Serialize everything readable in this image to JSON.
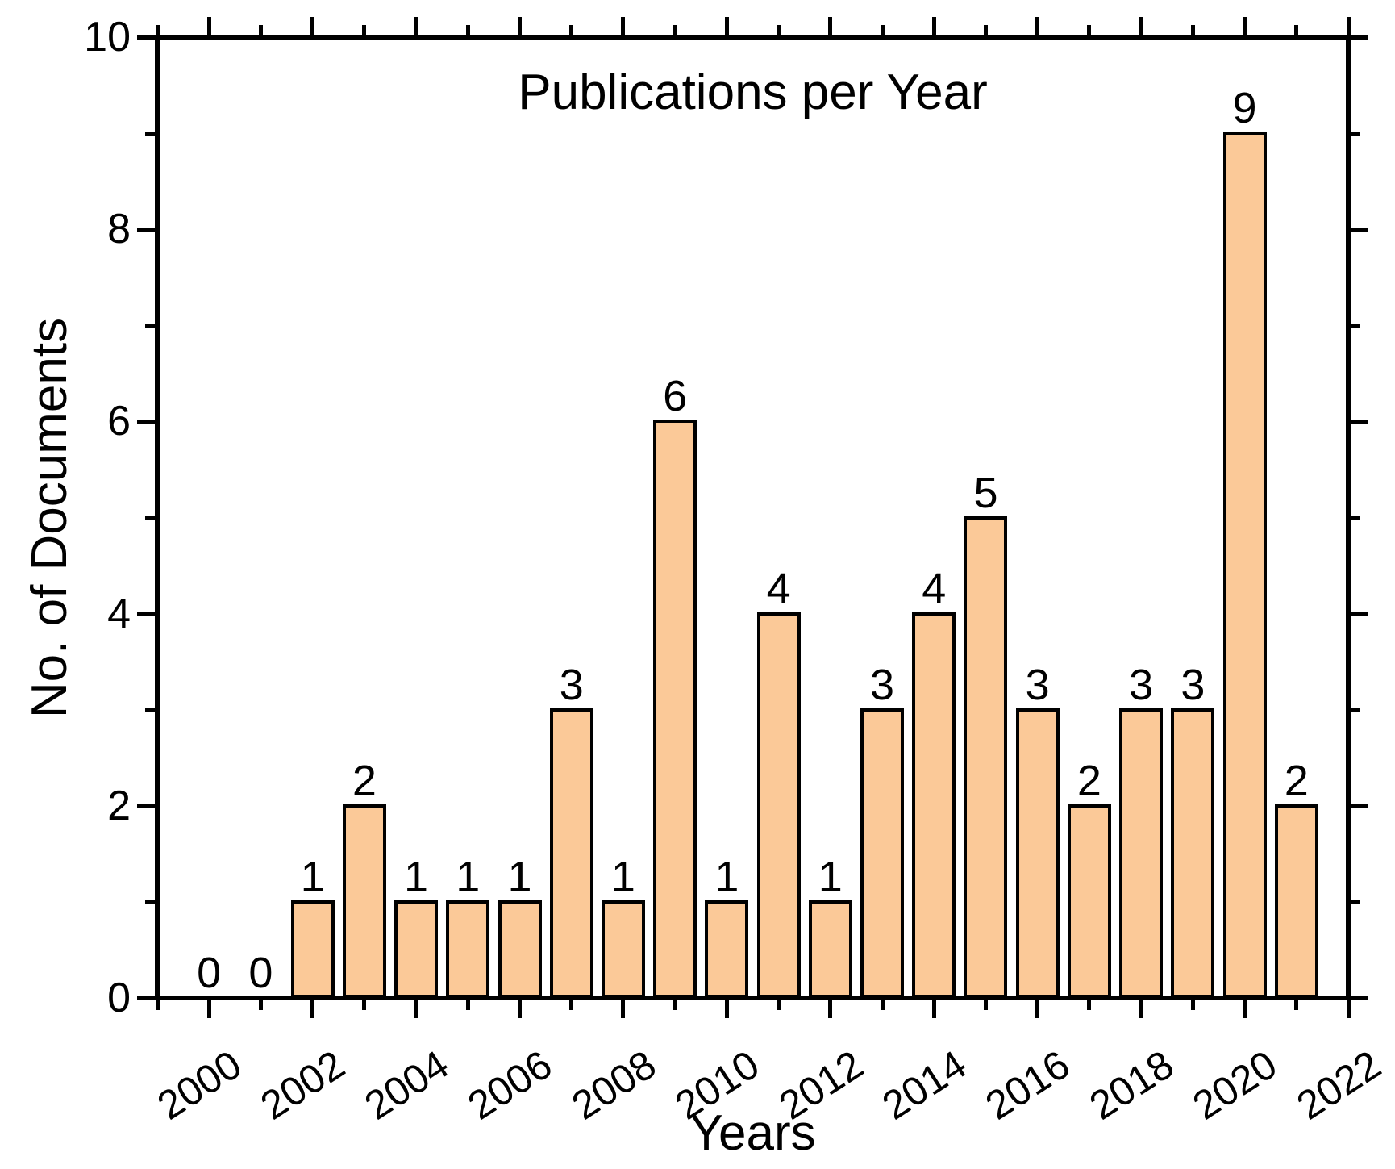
{
  "page": {
    "background": "#ffffff",
    "text_color": "#000000"
  },
  "chart_data": {
    "type": "bar",
    "title": "Publications per Year",
    "xlabel": "Years",
    "ylabel": "No. of Documents",
    "categories": [
      2000,
      2001,
      2002,
      2003,
      2004,
      2005,
      2006,
      2007,
      2008,
      2009,
      2010,
      2011,
      2012,
      2013,
      2014,
      2015,
      2016,
      2017,
      2018,
      2019,
      2020,
      2021
    ],
    "values": [
      0,
      0,
      1,
      2,
      1,
      1,
      1,
      3,
      1,
      6,
      1,
      4,
      1,
      3,
      4,
      5,
      3,
      2,
      3,
      3,
      9,
      2
    ],
    "value_labels_shown": true,
    "ylim": [
      0,
      10
    ],
    "xlim": [
      1999,
      2022
    ],
    "y_major_ticks": [
      0,
      2,
      4,
      6,
      8,
      10
    ],
    "y_minor_ticks": [
      1,
      3,
      5,
      7,
      9
    ],
    "x_major_tick_years": [
      2000,
      2002,
      2004,
      2006,
      2008,
      2010,
      2012,
      2014,
      2016,
      2018,
      2020,
      2022
    ],
    "x_minor_tick_years": [
      1999,
      2001,
      2003,
      2005,
      2007,
      2009,
      2011,
      2013,
      2015,
      2017,
      2019,
      2021
    ],
    "x_tick_label_years": [
      "2000",
      "2002",
      "2004",
      "2006",
      "2008",
      "2010",
      "2012",
      "2014",
      "2016",
      "2018",
      "2020",
      "2022"
    ],
    "x_tick_label_rotation_deg": -33,
    "bar_fill": "#FBC998",
    "bar_edge": "#000000",
    "axis_color": "#000000",
    "grid": false,
    "legend": "none",
    "ticks_direction": "out",
    "frame": "box-mirrored-ticks"
  }
}
